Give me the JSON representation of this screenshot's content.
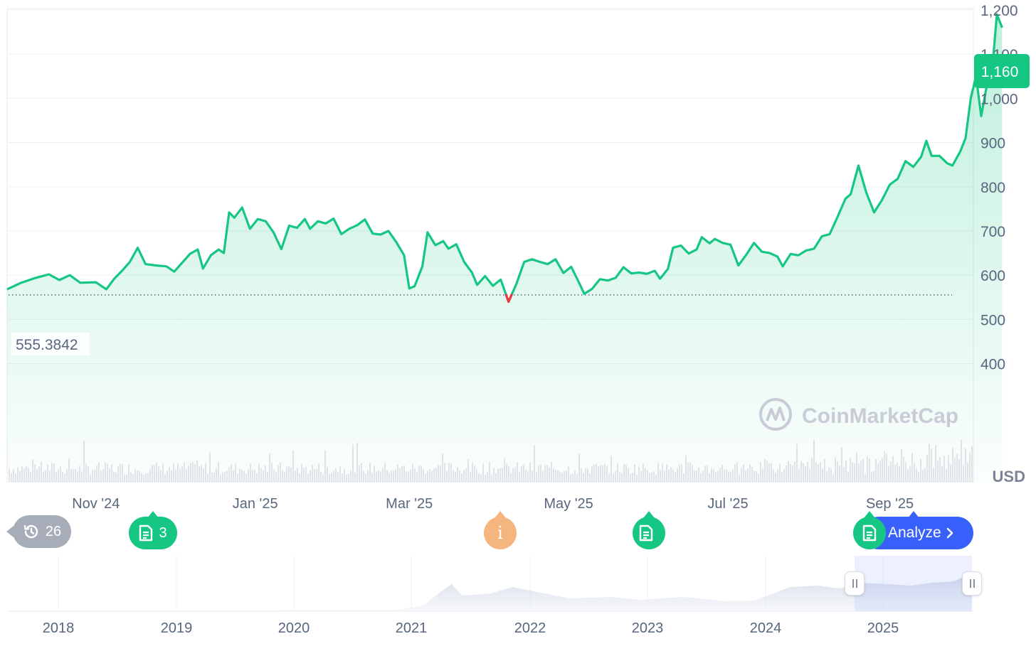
{
  "chart_data": {
    "type": "area",
    "currency_label": "USD",
    "y_ticks": [
      "400",
      "500",
      "600",
      "700",
      "800",
      "900",
      "1,000",
      "1,100",
      "1,200"
    ],
    "y_tick_values": [
      400,
      500,
      600,
      700,
      800,
      900,
      1000,
      1100,
      1200
    ],
    "ylim": [
      300,
      1400
    ],
    "x_ticks": [
      "Nov '24",
      "Jan '25",
      "Mar '25",
      "May '25",
      "Jul '25",
      "Sep '25"
    ],
    "x_tick_dates": [
      "2024-11-01",
      "2025-01-01",
      "2025-03-01",
      "2025-05-01",
      "2025-07-01",
      "2025-09-01"
    ],
    "xlim": [
      "2024-09-28",
      "2025-10-03"
    ],
    "current_price_label": "1,160",
    "current_price": 1160,
    "baseline_label": "555.3842",
    "baseline_value": 555.3842,
    "series": [
      {
        "points": [
          [
            "2024-09-28",
            568
          ],
          [
            "2024-10-03",
            582
          ],
          [
            "2024-10-09",
            594
          ],
          [
            "2024-10-14",
            602
          ],
          [
            "2024-10-18",
            589
          ],
          [
            "2024-10-22",
            600
          ],
          [
            "2024-10-26",
            583
          ],
          [
            "2024-11-01",
            584
          ],
          [
            "2024-11-05",
            568
          ],
          [
            "2024-11-08",
            592
          ],
          [
            "2024-11-11",
            610
          ],
          [
            "2024-11-14",
            630
          ],
          [
            "2024-11-17",
            662
          ],
          [
            "2024-11-20",
            625
          ],
          [
            "2024-11-24",
            622
          ],
          [
            "2024-11-28",
            620
          ],
          [
            "2024-12-01",
            608
          ],
          [
            "2024-12-04",
            628
          ],
          [
            "2024-12-07",
            648
          ],
          [
            "2024-12-10",
            658
          ],
          [
            "2024-12-12",
            615
          ],
          [
            "2024-12-15",
            645
          ],
          [
            "2024-12-18",
            658
          ],
          [
            "2024-12-20",
            650
          ],
          [
            "2024-12-22",
            742
          ],
          [
            "2024-12-24",
            730
          ],
          [
            "2024-12-27",
            753
          ],
          [
            "2024-12-30",
            705
          ],
          [
            "2025-01-02",
            727
          ],
          [
            "2025-01-05",
            722
          ],
          [
            "2025-01-08",
            697
          ],
          [
            "2025-01-11",
            659
          ],
          [
            "2025-01-14",
            712
          ],
          [
            "2025-01-17",
            707
          ],
          [
            "2025-01-20",
            727
          ],
          [
            "2025-01-22",
            705
          ],
          [
            "2025-01-25",
            722
          ],
          [
            "2025-01-28",
            717
          ],
          [
            "2025-01-31",
            728
          ],
          [
            "2025-02-03",
            693
          ],
          [
            "2025-02-06",
            705
          ],
          [
            "2025-02-09",
            713
          ],
          [
            "2025-02-12",
            726
          ],
          [
            "2025-02-15",
            694
          ],
          [
            "2025-02-18",
            692
          ],
          [
            "2025-02-21",
            700
          ],
          [
            "2025-02-24",
            675
          ],
          [
            "2025-02-27",
            645
          ],
          [
            "2025-03-01",
            570
          ],
          [
            "2025-03-03",
            575
          ],
          [
            "2025-03-06",
            620
          ],
          [
            "2025-03-08",
            697
          ],
          [
            "2025-03-11",
            668
          ],
          [
            "2025-03-14",
            677
          ],
          [
            "2025-03-16",
            660
          ],
          [
            "2025-03-19",
            670
          ],
          [
            "2025-03-22",
            630
          ],
          [
            "2025-03-25",
            606
          ],
          [
            "2025-03-27",
            578
          ],
          [
            "2025-03-30",
            598
          ],
          [
            "2025-04-02",
            576
          ],
          [
            "2025-04-05",
            590
          ],
          [
            "2025-04-08",
            540
          ],
          [
            "2025-04-11",
            580
          ],
          [
            "2025-04-14",
            630
          ],
          [
            "2025-04-17",
            636
          ],
          [
            "2025-04-20",
            630
          ],
          [
            "2025-04-23",
            625
          ],
          [
            "2025-04-26",
            636
          ],
          [
            "2025-04-29",
            605
          ],
          [
            "2025-05-02",
            619
          ],
          [
            "2025-05-05",
            583
          ],
          [
            "2025-05-07",
            558
          ],
          [
            "2025-05-10",
            569
          ],
          [
            "2025-05-13",
            591
          ],
          [
            "2025-05-16",
            588
          ],
          [
            "2025-05-19",
            594
          ],
          [
            "2025-05-22",
            618
          ],
          [
            "2025-05-25",
            604
          ],
          [
            "2025-05-28",
            606
          ],
          [
            "2025-05-31",
            603
          ],
          [
            "2025-06-03",
            610
          ],
          [
            "2025-06-05",
            592
          ],
          [
            "2025-06-08",
            614
          ],
          [
            "2025-06-10",
            662
          ],
          [
            "2025-06-13",
            667
          ],
          [
            "2025-06-16",
            649
          ],
          [
            "2025-06-19",
            658
          ],
          [
            "2025-06-21",
            686
          ],
          [
            "2025-06-24",
            672
          ],
          [
            "2025-06-26",
            682
          ],
          [
            "2025-06-29",
            673
          ],
          [
            "2025-07-02",
            669
          ],
          [
            "2025-07-05",
            622
          ],
          [
            "2025-07-08",
            646
          ],
          [
            "2025-07-11",
            673
          ],
          [
            "2025-07-14",
            653
          ],
          [
            "2025-07-17",
            650
          ],
          [
            "2025-07-20",
            642
          ],
          [
            "2025-07-22",
            620
          ],
          [
            "2025-07-25",
            648
          ],
          [
            "2025-07-28",
            645
          ],
          [
            "2025-07-31",
            656
          ],
          [
            "2025-08-03",
            660
          ],
          [
            "2025-08-06",
            688
          ],
          [
            "2025-08-09",
            693
          ],
          [
            "2025-08-12",
            732
          ],
          [
            "2025-08-15",
            773
          ],
          [
            "2025-08-17",
            783
          ],
          [
            "2025-08-20",
            848
          ],
          [
            "2025-08-23",
            787
          ],
          [
            "2025-08-26",
            742
          ],
          [
            "2025-08-29",
            770
          ],
          [
            "2025-09-01",
            805
          ],
          [
            "2025-09-04",
            818
          ],
          [
            "2025-09-07",
            858
          ],
          [
            "2025-09-10",
            845
          ],
          [
            "2025-09-13",
            868
          ],
          [
            "2025-09-15",
            904
          ],
          [
            "2025-09-17",
            870
          ],
          [
            "2025-09-20",
            870
          ],
          [
            "2025-09-23",
            853
          ],
          [
            "2025-09-25",
            848
          ],
          [
            "2025-09-28",
            880
          ],
          [
            "2025-09-30",
            910
          ],
          [
            "2025-10-02",
            1000
          ],
          [
            "2025-10-04",
            1050
          ],
          [
            "2025-10-06",
            960
          ],
          [
            "2025-10-08",
            1025
          ],
          [
            "2025-10-10",
            1050
          ],
          [
            "2025-10-12",
            1190
          ],
          [
            "2025-10-14",
            1160
          ]
        ]
      }
    ],
    "events": [
      {
        "label": "3",
        "icon": "document-icon",
        "color": "#16c784"
      },
      {
        "label": "i",
        "icon": "info-icon",
        "color": "#f5b57e"
      },
      {
        "label": "",
        "icon": "document-icon",
        "color": "#16c784"
      }
    ],
    "history": {
      "icon": "history-icon",
      "label": "26"
    },
    "analyze_label": "Analyze",
    "watermark": "CoinMarketCap",
    "navigator": {
      "x_ticks": [
        "2018",
        "2019",
        "2020",
        "2021",
        "2022",
        "2023",
        "2024",
        "2025"
      ],
      "selection": [
        "2024-10-01",
        "2025-10-14"
      ]
    },
    "colors": {
      "line": "#16c784",
      "down": "#ea3943",
      "grid": "#eff2f5",
      "axis_text": "#58667e",
      "accent": "#3861fb"
    }
  }
}
